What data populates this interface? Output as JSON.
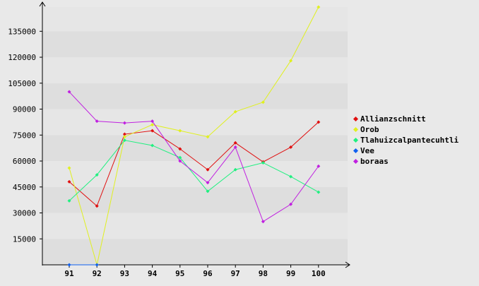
{
  "chart_data": {
    "type": "line",
    "categories": [
      "91",
      "92",
      "93",
      "94",
      "95",
      "96",
      "97",
      "98",
      "99",
      "100"
    ],
    "y_ticks": [
      "15000",
      "30000",
      "45000",
      "60000",
      "75000",
      "90000",
      "105000",
      "120000",
      "135000"
    ],
    "ylim": [
      0,
      149000
    ],
    "grid": "horizontal bands",
    "legend_position": "right",
    "series": [
      {
        "name": "Allianzschnitt",
        "color": "#e01010",
        "values": [
          48000,
          34000,
          75500,
          77500,
          67000,
          55000,
          70500,
          59500,
          68000,
          82500
        ]
      },
      {
        "name": "Orob",
        "color": "#e0f020",
        "values": [
          56000,
          0,
          74000,
          81000,
          77500,
          74000,
          88500,
          94000,
          118000,
          149000
        ]
      },
      {
        "name": "Tlahuizcalpantecuhtli",
        "color": "#20f080",
        "values": [
          37000,
          52000,
          72000,
          69000,
          62000,
          42500,
          55000,
          59000,
          51000,
          42000
        ]
      },
      {
        "name": "Vee",
        "color": "#1060f0",
        "values": [
          0,
          0,
          null,
          null,
          null,
          null,
          null,
          null,
          null,
          null
        ]
      },
      {
        "name": "boraas",
        "color": "#c020e0",
        "values": [
          100000,
          83000,
          82000,
          83000,
          60000,
          47500,
          68000,
          25000,
          35000,
          57000
        ]
      }
    ]
  }
}
